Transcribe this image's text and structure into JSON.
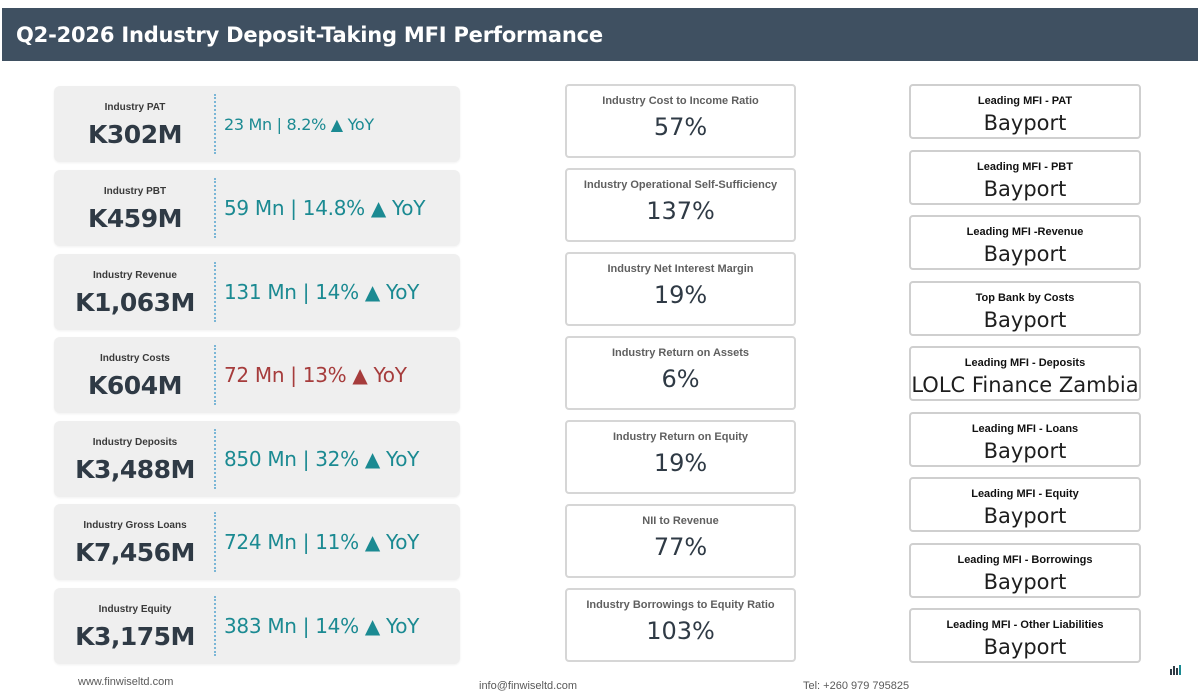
{
  "header": {
    "title": "Q2-2026 Industry Deposit-Taking MFI Performance"
  },
  "kpis": [
    {
      "label": "Industry PAT",
      "value": "K302M",
      "growth": "23 Mn | 8.2% ▲ YoY",
      "trend": "up"
    },
    {
      "label": "Industry PBT",
      "value": "K459M",
      "growth": "59 Mn | 14.8% ▲ YoY",
      "trend": "up"
    },
    {
      "label": "Industry Revenue",
      "value": "K1,063M",
      "growth": "131 Mn | 14% ▲ YoY",
      "trend": "up"
    },
    {
      "label": "Industry Costs",
      "value": "K604M",
      "growth": "72 Mn | 13% ▲ YoY",
      "trend": "up-negative"
    },
    {
      "label": "Industry Deposits",
      "value": "K3,488M",
      "growth": "850 Mn | 32% ▲ YoY",
      "trend": "up"
    },
    {
      "label": "Industry Gross Loans",
      "value": "K7,456M",
      "growth": "724 Mn | 11% ▲ YoY",
      "trend": "up"
    },
    {
      "label": "Industry Equity",
      "value": "K3,175M",
      "growth": "383 Mn | 14% ▲ YoY",
      "trend": "up"
    }
  ],
  "ratios": [
    {
      "label": "Industry Cost to Income Ratio",
      "value": "57%"
    },
    {
      "label": "Industry Operational Self-Sufficiency",
      "value": "137%"
    },
    {
      "label": "Industry Net Interest Margin",
      "value": "19%"
    },
    {
      "label": "Industry Return on Assets",
      "value": "6%"
    },
    {
      "label": "Industry Return on Equity",
      "value": "19%"
    },
    {
      "label": "NII to Revenue",
      "value": "77%"
    },
    {
      "label": "Industry Borrowings to Equity Ratio",
      "value": "103%"
    }
  ],
  "leaders": [
    {
      "label": "Leading MFI - PAT",
      "value": "Bayport"
    },
    {
      "label": "Leading MFI - PBT",
      "value": "Bayport"
    },
    {
      "label": "Leading MFI -Revenue",
      "value": "Bayport"
    },
    {
      "label": "Top Bank by Costs",
      "value": "Bayport"
    },
    {
      "label": "Leading MFI - Deposits",
      "value": "LOLC Finance Zambia"
    },
    {
      "label": "Leading MFI - Loans",
      "value": "Bayport"
    },
    {
      "label": "Leading MFI - Equity",
      "value": "Bayport"
    },
    {
      "label": "Leading MFI - Borrowings",
      "value": "Bayport"
    },
    {
      "label": "Leading MFI - Other Liabilities",
      "value": "Bayport"
    }
  ],
  "footer": {
    "website": "www.finwiseltd.com",
    "email": "info@finwiseltd.com",
    "phone": "Tel: +260 979 795825"
  },
  "colors": {
    "header_bg": "#3f5061",
    "positive": "#1b8a92",
    "negative": "#a63c3c",
    "card_bg": "#efefef"
  },
  "icons": {
    "brand": "finwise-logo-icon"
  }
}
